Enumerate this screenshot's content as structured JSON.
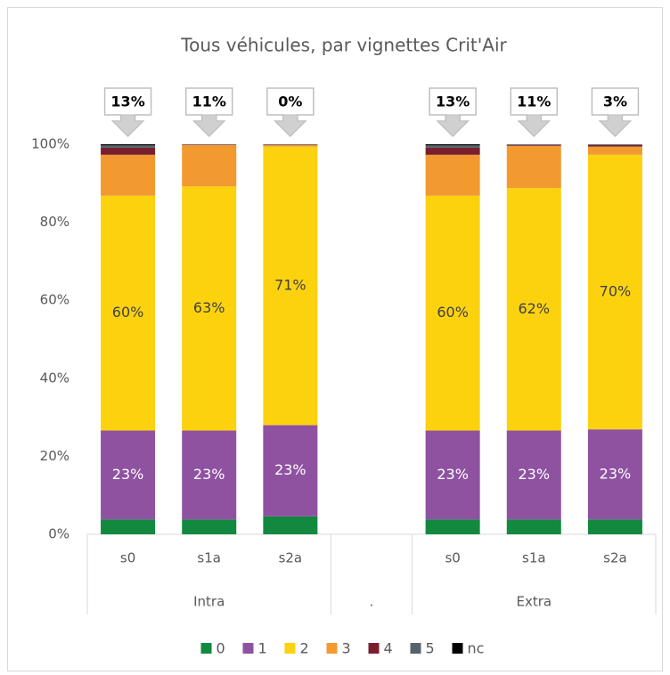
{
  "chart_data": {
    "type": "stacked_bar_100",
    "title": "Tous véhicules, par vignettes Crit'Air",
    "categories": [
      "s0",
      "s1a",
      "s2a",
      null,
      "s0",
      "s1a",
      "s2a"
    ],
    "group_labels": [
      "Intra",
      ".",
      "Extra"
    ],
    "group_sizes": [
      3,
      1,
      3
    ],
    "ylim": [
      0,
      100
    ],
    "yticks": [
      {
        "value": 0,
        "label": "0%"
      },
      {
        "value": 20,
        "label": "20%"
      },
      {
        "value": 40,
        "label": "40%"
      },
      {
        "value": 60,
        "label": "60%"
      },
      {
        "value": 80,
        "label": "80%"
      },
      {
        "value": 100,
        "label": "100%"
      }
    ],
    "series": [
      {
        "name": "0",
        "color": "#12893f",
        "values": [
          3.8,
          3.8,
          4.6,
          null,
          3.8,
          3.8,
          3.8
        ]
      },
      {
        "name": "1",
        "color": "#8f52a1",
        "values": [
          22.8,
          22.8,
          23.4,
          null,
          22.8,
          22.8,
          23.1
        ],
        "value_labels": [
          "23%",
          "23%",
          "23%",
          null,
          "23%",
          "23%",
          "23%"
        ]
      },
      {
        "name": "2",
        "color": "#fcd20f",
        "values": [
          60.2,
          62.6,
          71.4,
          null,
          60.2,
          62.2,
          70.4
        ],
        "value_labels": [
          "60%",
          "63%",
          "71%",
          null,
          "60%",
          "62%",
          "70%"
        ]
      },
      {
        "name": "3",
        "color": "#f29a30",
        "values": [
          10.5,
          10.6,
          0.4,
          null,
          10.5,
          10.8,
          2.1
        ]
      },
      {
        "name": "4",
        "color": "#7a1f2e",
        "values": [
          1.8,
          0.1,
          0.1,
          null,
          1.8,
          0.2,
          0.4
        ]
      },
      {
        "name": "5",
        "color": "#57636c",
        "values": [
          0.6,
          0.1,
          0.1,
          null,
          0.6,
          0.2,
          0.2
        ]
      },
      {
        "name": "nc",
        "color": "#000000",
        "values": [
          0.3,
          0.0,
          0.0,
          null,
          0.3,
          0.0,
          0.0
        ]
      }
    ],
    "callouts": {
      "values": [
        13,
        11,
        0,
        null,
        13,
        11,
        3
      ],
      "labels": [
        "13%",
        "11%",
        "0%",
        null,
        "13%",
        "11%",
        "3%"
      ]
    },
    "legend": "bottom"
  }
}
